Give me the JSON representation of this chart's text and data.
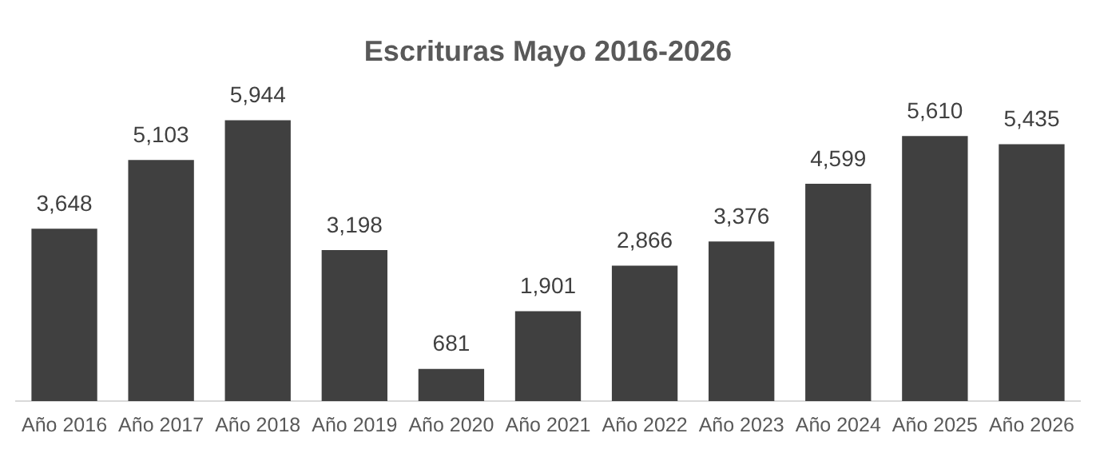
{
  "chart_data": {
    "type": "bar",
    "title": "Escrituras Mayo 2016-2026",
    "categories": [
      "Año 2016",
      "Año 2017",
      "Año 2018",
      "Año 2019",
      "Año 2020",
      "Año 2021",
      "Año 2022",
      "Año 2023",
      "Año 2024",
      "Año 2025",
      "Año 2026"
    ],
    "values": [
      3648,
      5103,
      5944,
      3198,
      681,
      1901,
      2866,
      3376,
      4599,
      5610,
      5435
    ],
    "value_labels": [
      "3,648",
      "5,103",
      "5,944",
      "3,198",
      "681",
      "1,901",
      "2,866",
      "3,376",
      "4,599",
      "5,610",
      "5,435"
    ],
    "color": "#404040",
    "grid": false,
    "legend": false
  }
}
